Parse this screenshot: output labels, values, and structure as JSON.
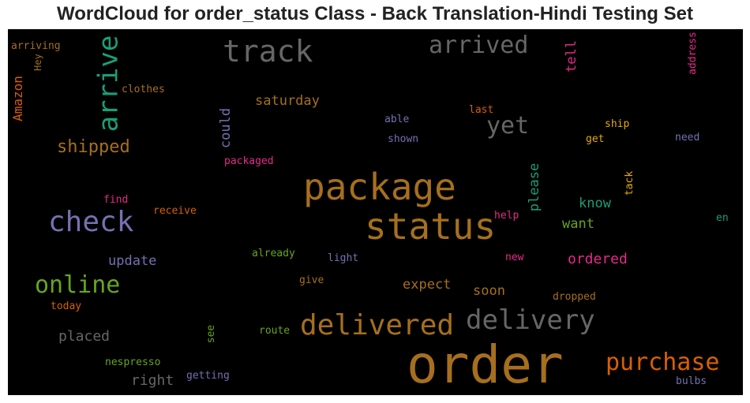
{
  "title": "WordCloud for order_status Class - Back Translation-Hindi Testing Set",
  "colors": {
    "brown": "#a66f1e",
    "gray": "#666666",
    "green": "#1b9e77",
    "orange": "#d95f02",
    "purple": "#7570b3",
    "magenta": "#e7298a",
    "lime": "#66a61e",
    "gold": "#e6ab02"
  },
  "words": [
    {
      "text": "order",
      "color": "brown"
    },
    {
      "text": "status",
      "color": "brown"
    },
    {
      "text": "package",
      "color": "brown"
    },
    {
      "text": "delivered",
      "color": "brown"
    },
    {
      "text": "delivery",
      "color": "gray"
    },
    {
      "text": "track",
      "color": "gray"
    },
    {
      "text": "arrive",
      "color": "green"
    },
    {
      "text": "arrived",
      "color": "gray"
    },
    {
      "text": "check",
      "color": "purple"
    },
    {
      "text": "online",
      "color": "lime"
    },
    {
      "text": "purchase",
      "color": "orange"
    },
    {
      "text": "yet",
      "color": "gray"
    },
    {
      "text": "shipped",
      "color": "brown"
    },
    {
      "text": "saturday",
      "color": "brown"
    },
    {
      "text": "ordered",
      "color": "magenta"
    },
    {
      "text": "update",
      "color": "purple"
    },
    {
      "text": "please",
      "color": "green"
    },
    {
      "text": "know",
      "color": "green"
    },
    {
      "text": "want",
      "color": "lime"
    },
    {
      "text": "expect",
      "color": "brown"
    },
    {
      "text": "soon",
      "color": "brown"
    },
    {
      "text": "placed",
      "color": "gray"
    },
    {
      "text": "right",
      "color": "gray"
    },
    {
      "text": "could",
      "color": "purple"
    },
    {
      "text": "Amazon",
      "color": "orange"
    },
    {
      "text": "tell",
      "color": "magenta"
    },
    {
      "text": "clothes",
      "color": "brown"
    },
    {
      "text": "arriving",
      "color": "brown"
    },
    {
      "text": "Hey",
      "color": "brown"
    },
    {
      "text": "address",
      "color": "magenta"
    },
    {
      "text": "able",
      "color": "purple"
    },
    {
      "text": "last",
      "color": "orange"
    },
    {
      "text": "ship",
      "color": "gold"
    },
    {
      "text": "shown",
      "color": "purple"
    },
    {
      "text": "get",
      "color": "gold"
    },
    {
      "text": "need",
      "color": "purple"
    },
    {
      "text": "packaged",
      "color": "magenta"
    },
    {
      "text": "tack",
      "color": "gold"
    },
    {
      "text": "find",
      "color": "magenta"
    },
    {
      "text": "receive",
      "color": "orange"
    },
    {
      "text": "help",
      "color": "magenta"
    },
    {
      "text": "en",
      "color": "green"
    },
    {
      "text": "already",
      "color": "lime"
    },
    {
      "text": "light",
      "color": "purple"
    },
    {
      "text": "new",
      "color": "magenta"
    },
    {
      "text": "give",
      "color": "brown"
    },
    {
      "text": "today",
      "color": "orange"
    },
    {
      "text": "dropped",
      "color": "brown"
    },
    {
      "text": "see",
      "color": "lime"
    },
    {
      "text": "route",
      "color": "lime"
    },
    {
      "text": "nespresso",
      "color": "lime"
    },
    {
      "text": "getting",
      "color": "purple"
    },
    {
      "text": "bulbs",
      "color": "purple"
    }
  ]
}
